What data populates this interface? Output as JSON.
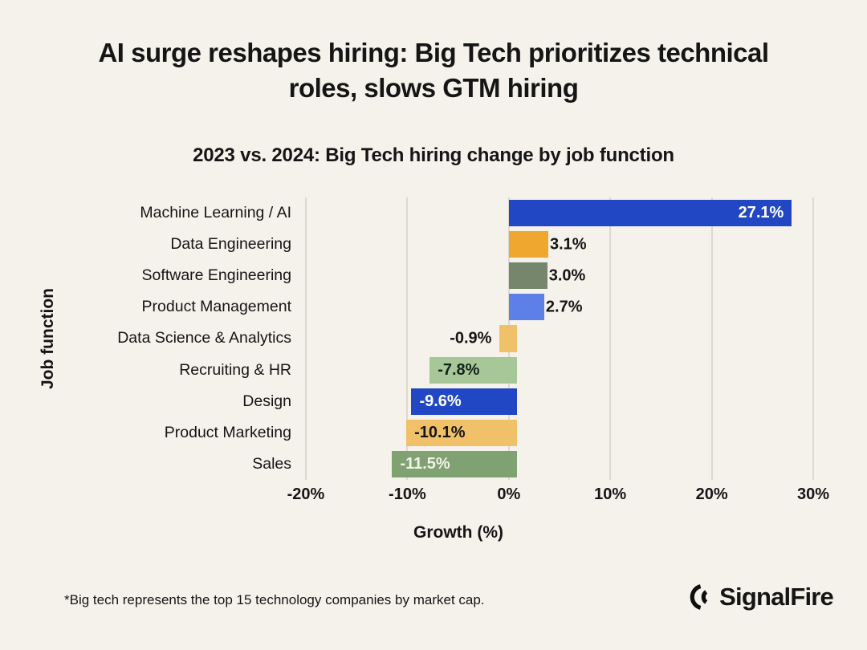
{
  "page": {
    "background": "#f5f2ec",
    "text_color": "#151515"
  },
  "header": {
    "title": "AI surge reshapes hiring: Big Tech prioritizes technical roles, slows GTM hiring",
    "subtitle": "2023 vs. 2024: Big Tech hiring change by job function"
  },
  "chart_data": {
    "type": "bar",
    "orientation": "horizontal",
    "title": "2023 vs. 2024: Big Tech hiring change by job function",
    "xlabel": "Growth (%)",
    "ylabel": "Job function",
    "xlim": [
      -20,
      30
    ],
    "grid": "vertical",
    "gridline_color": "#ddd9d1",
    "xticks": [
      {
        "value": -20,
        "label": "-20%"
      },
      {
        "value": -10,
        "label": "-10%"
      },
      {
        "value": 0,
        "label": "0%"
      },
      {
        "value": 10,
        "label": "10%"
      },
      {
        "value": 20,
        "label": "20%"
      },
      {
        "value": 30,
        "label": "30%"
      }
    ],
    "bars": [
      {
        "category": "Machine Learning / AI",
        "value": 27.1,
        "label": "27.1%",
        "color": "#2147c4",
        "label_inside": true,
        "label_color": "#ffffff"
      },
      {
        "category": "Data Engineering",
        "value": 3.1,
        "label": "3.1%",
        "color": "#efa72f",
        "label_inside": false,
        "label_color": "#151515"
      },
      {
        "category": "Software Engineering",
        "value": 3.0,
        "label": "3.0%",
        "color": "#75866d",
        "label_inside": false,
        "label_color": "#151515"
      },
      {
        "category": "Product Management",
        "value": 2.7,
        "label": "2.7%",
        "color": "#5c80e8",
        "label_inside": false,
        "label_color": "#151515"
      },
      {
        "category": "Data Science & Analytics",
        "value": -0.9,
        "label": "-0.9%",
        "color": "#f0c168",
        "label_inside": false,
        "label_color": "#151515"
      },
      {
        "category": "Recruiting & HR",
        "value": -7.8,
        "label": "-7.8%",
        "color": "#a8c799",
        "label_inside": true,
        "label_color": "#14211a"
      },
      {
        "category": "Design",
        "value": -9.6,
        "label": "-9.6%",
        "color": "#2147c4",
        "label_inside": true,
        "label_color": "#ffffff"
      },
      {
        "category": "Product Marketing",
        "value": -10.1,
        "label": "-10.1%",
        "color": "#f0c168",
        "label_inside": true,
        "label_color": "#151515"
      },
      {
        "category": "Sales",
        "value": -11.5,
        "label": "-11.5%",
        "color": "#80a272",
        "label_inside": true,
        "label_color": "#f3f1e9"
      }
    ]
  },
  "footer": {
    "note": "*Big tech represents the top 15 technology companies by market cap.",
    "brand": "SignalFire"
  }
}
